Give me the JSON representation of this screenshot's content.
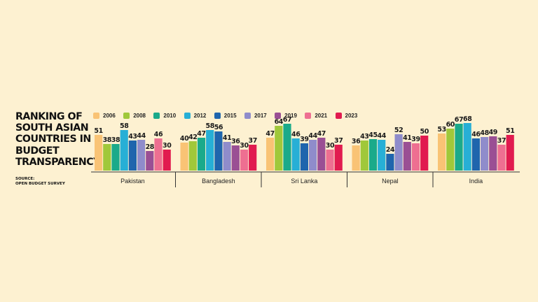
{
  "title_lines": [
    "RANKING OF",
    "SOUTH ASIAN",
    "COUNTRIES IN",
    "BUDGET",
    "TRANSPARENCY"
  ],
  "source_label": "SOURCE:",
  "source_name": "OPEN BUDGET SURVEY",
  "colors": {
    "background": "#fdf1d1",
    "series": [
      "#f9c375",
      "#a0c83a",
      "#1aaa8a",
      "#27afd6",
      "#1f65ad",
      "#8f8ccb",
      "#9a4f94",
      "#ee6f91",
      "#e11b4f"
    ]
  },
  "chart_data": {
    "type": "bar",
    "title": "RANKING OF SOUTH ASIAN COUNTRIES IN BUDGET TRANSPARENCY",
    "xlabel": "",
    "ylabel": "",
    "ylim": [
      0,
      70
    ],
    "grid": false,
    "legend_position": "top",
    "categories": [
      "Pakistan",
      "Bangladesh",
      "Sri Lanka",
      "Nepal",
      "India"
    ],
    "series": [
      {
        "name": "2006",
        "values": [
          51,
          40,
          47,
          36,
          53
        ]
      },
      {
        "name": "2008",
        "values": [
          38,
          42,
          64,
          43,
          60
        ]
      },
      {
        "name": "2010",
        "values": [
          38,
          47,
          67,
          45,
          67
        ]
      },
      {
        "name": "2012",
        "values": [
          58,
          58,
          46,
          44,
          68
        ]
      },
      {
        "name": "2015",
        "values": [
          43,
          56,
          39,
          24,
          46
        ]
      },
      {
        "name": "2017",
        "values": [
          44,
          41,
          44,
          52,
          48
        ]
      },
      {
        "name": "2019",
        "values": [
          28,
          36,
          47,
          41,
          49
        ]
      },
      {
        "name": "2021",
        "values": [
          46,
          30,
          30,
          39,
          37
        ]
      },
      {
        "name": "2023",
        "values": [
          30,
          37,
          37,
          50,
          51
        ]
      }
    ]
  }
}
